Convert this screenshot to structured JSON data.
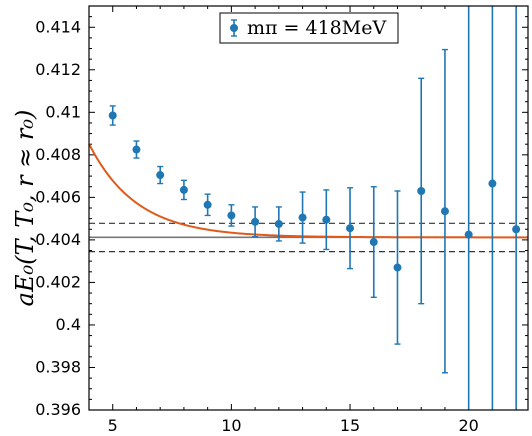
{
  "chart_data": {
    "type": "scatter",
    "title": "",
    "xlabel": "",
    "ylabel": "aE₀(T, T₀, r ≈ r₀)",
    "xlim": [
      4,
      22.5
    ],
    "ylim": [
      0.396,
      0.415
    ],
    "xticks": [
      5,
      10,
      15,
      20
    ],
    "yticks": [
      0.396,
      0.398,
      0.4,
      0.402,
      0.404,
      0.406,
      0.408,
      0.41,
      0.412,
      0.414
    ],
    "ytick_labels": [
      "0.396",
      "0.398",
      "0.4",
      "0.402",
      "0.404",
      "0.406",
      "0.408",
      "0.41",
      "0.412",
      "0.414"
    ],
    "legend": {
      "label": "mπ = 418MeV",
      "placement": "top-center"
    },
    "colors": {
      "points": "#1f77b4",
      "fit": "#e05a1c",
      "plateau": "#777777",
      "band": "#333333"
    },
    "series": [
      {
        "name": "mπ = 418MeV",
        "points": [
          {
            "x": 5,
            "y": 0.40985,
            "err": 0.00045
          },
          {
            "x": 6,
            "y": 0.40825,
            "err": 0.0004
          },
          {
            "x": 7,
            "y": 0.40705,
            "err": 0.0004
          },
          {
            "x": 8,
            "y": 0.40635,
            "err": 0.00045
          },
          {
            "x": 9,
            "y": 0.40565,
            "err": 0.0005
          },
          {
            "x": 10,
            "y": 0.40515,
            "err": 0.0005
          },
          {
            "x": 11,
            "y": 0.40485,
            "err": 0.0007
          },
          {
            "x": 12,
            "y": 0.40475,
            "err": 0.0008
          },
          {
            "x": 13,
            "y": 0.40505,
            "err": 0.0012
          },
          {
            "x": 14,
            "y": 0.40495,
            "err": 0.0014
          },
          {
            "x": 15,
            "y": 0.40455,
            "err": 0.0019
          },
          {
            "x": 16,
            "y": 0.4039,
            "err": 0.0026
          },
          {
            "x": 17,
            "y": 0.4027,
            "err": 0.0036
          },
          {
            "x": 18,
            "y": 0.4063,
            "err": 0.0053
          },
          {
            "x": 19,
            "y": 0.40535,
            "err": 0.0076
          },
          {
            "x": 20,
            "y": 0.40425,
            "err": 0.011
          },
          {
            "x": 21,
            "y": 0.40665,
            "err": 0.016
          },
          {
            "x": 22,
            "y": 0.4045,
            "err": 0.02
          }
        ]
      }
    ],
    "fit": {
      "type": "exponential",
      "plateau": 0.40412,
      "amplitude": 0.0325,
      "decay": 0.5
    },
    "plateau": {
      "value": 0.40412,
      "upper": 0.40478,
      "lower": 0.40345
    }
  }
}
